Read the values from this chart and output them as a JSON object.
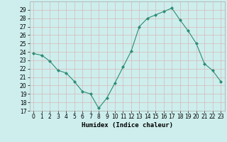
{
  "x": [
    0,
    1,
    2,
    3,
    4,
    5,
    6,
    7,
    8,
    9,
    10,
    11,
    12,
    13,
    14,
    15,
    16,
    17,
    18,
    19,
    20,
    21,
    22,
    23
  ],
  "y": [
    23.8,
    23.6,
    22.9,
    21.8,
    21.5,
    20.5,
    19.3,
    19.0,
    17.3,
    18.5,
    20.3,
    22.2,
    24.1,
    27.0,
    28.0,
    28.4,
    28.8,
    29.2,
    27.8,
    26.5,
    25.0,
    22.6,
    21.8,
    20.5
  ],
  "line_color": "#2e8b74",
  "marker": "D",
  "marker_size": 2,
  "bg_color": "#cdeeed",
  "grid_color": "#b8dede",
  "xlabel": "Humidex (Indice chaleur)",
  "ylim": [
    17,
    30
  ],
  "xlim": [
    -0.5,
    23.5
  ],
  "yticks": [
    17,
    18,
    19,
    20,
    21,
    22,
    23,
    24,
    25,
    26,
    27,
    28,
    29
  ],
  "xticks": [
    0,
    1,
    2,
    3,
    4,
    5,
    6,
    7,
    8,
    9,
    10,
    11,
    12,
    13,
    14,
    15,
    16,
    17,
    18,
    19,
    20,
    21,
    22,
    23
  ],
  "label_fontsize": 6.5,
  "tick_fontsize": 5.5,
  "linewidth": 0.8,
  "spine_color": "#aaaaaa"
}
